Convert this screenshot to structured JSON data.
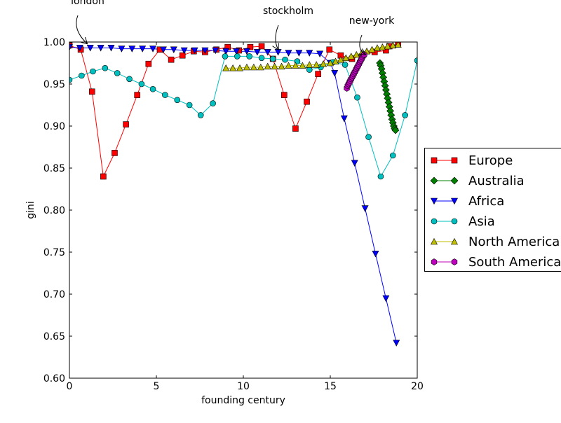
{
  "chart_data": {
    "type": "line",
    "title": "",
    "xlabel": "founding century",
    "ylabel": "gini",
    "xlim": [
      0,
      20
    ],
    "ylim": [
      0.6,
      1.0
    ],
    "x_ticks": [
      0,
      5,
      10,
      15,
      20
    ],
    "y_ticks": [
      0.6,
      0.65,
      0.7,
      0.75,
      0.8,
      0.85,
      0.9,
      0.95,
      1.0
    ],
    "grid": false,
    "legend_position": "right",
    "annotations": [
      {
        "text": "london",
        "x": 1.0,
        "y": 0.995
      },
      {
        "text": "stockholm",
        "x": 12.0,
        "y": 0.988
      },
      {
        "text": "new-york",
        "x": 17.0,
        "y": 0.982
      }
    ],
    "series": [
      {
        "name": "Europe",
        "color": "#ff0000",
        "marker": "square",
        "points": [
          [
            0.0,
            0.996
          ],
          [
            0.65,
            0.991
          ],
          [
            1.3,
            0.941
          ],
          [
            1.95,
            0.84
          ],
          [
            2.6,
            0.868
          ],
          [
            3.25,
            0.902
          ],
          [
            3.9,
            0.937
          ],
          [
            4.55,
            0.974
          ],
          [
            5.2,
            0.991
          ],
          [
            5.85,
            0.979
          ],
          [
            6.5,
            0.984
          ],
          [
            7.15,
            0.989
          ],
          [
            7.8,
            0.988
          ],
          [
            8.45,
            0.991
          ],
          [
            9.1,
            0.994
          ],
          [
            9.75,
            0.99
          ],
          [
            10.4,
            0.994
          ],
          [
            11.05,
            0.995
          ],
          [
            11.7,
            0.98
          ],
          [
            12.35,
            0.937
          ],
          [
            13.0,
            0.897
          ],
          [
            13.65,
            0.929
          ],
          [
            14.3,
            0.962
          ],
          [
            14.95,
            0.991
          ],
          [
            15.6,
            0.984
          ],
          [
            16.25,
            0.98
          ],
          [
            16.9,
            0.985
          ],
          [
            17.55,
            0.988
          ],
          [
            18.2,
            0.99
          ],
          [
            18.4,
            0.995
          ],
          [
            18.9,
            0.998
          ]
        ]
      },
      {
        "name": "Australia",
        "color": "#008000",
        "marker": "diamond",
        "points": [
          [
            17.85,
            0.975
          ],
          [
            17.9,
            0.972
          ],
          [
            17.95,
            0.968
          ],
          [
            18.0,
            0.963
          ],
          [
            18.05,
            0.958
          ],
          [
            18.1,
            0.953
          ],
          [
            18.15,
            0.948
          ],
          [
            18.2,
            0.943
          ],
          [
            18.25,
            0.938
          ],
          [
            18.3,
            0.933
          ],
          [
            18.35,
            0.928
          ],
          [
            18.4,
            0.923
          ],
          [
            18.45,
            0.918
          ],
          [
            18.5,
            0.913
          ],
          [
            18.55,
            0.908
          ],
          [
            18.6,
            0.904
          ],
          [
            18.65,
            0.9
          ],
          [
            18.7,
            0.897
          ],
          [
            18.75,
            0.895
          ]
        ]
      },
      {
        "name": "Africa",
        "color": "#0000ff",
        "marker": "triangle-down",
        "points": [
          [
            0.0,
            0.994
          ],
          [
            0.6,
            0.993
          ],
          [
            1.2,
            0.993
          ],
          [
            1.8,
            0.993
          ],
          [
            2.4,
            0.993
          ],
          [
            3.0,
            0.992
          ],
          [
            3.6,
            0.992
          ],
          [
            4.2,
            0.992
          ],
          [
            4.8,
            0.992
          ],
          [
            5.4,
            0.991
          ],
          [
            6.0,
            0.991
          ],
          [
            6.6,
            0.99
          ],
          [
            7.2,
            0.99
          ],
          [
            7.8,
            0.99
          ],
          [
            8.4,
            0.99
          ],
          [
            9.0,
            0.989
          ],
          [
            9.6,
            0.989
          ],
          [
            10.2,
            0.989
          ],
          [
            10.8,
            0.988
          ],
          [
            11.4,
            0.988
          ],
          [
            12.0,
            0.988
          ],
          [
            12.6,
            0.987
          ],
          [
            13.2,
            0.987
          ],
          [
            13.8,
            0.987
          ],
          [
            14.4,
            0.986
          ],
          [
            15.0,
            0.975
          ],
          [
            15.25,
            0.963
          ],
          [
            15.8,
            0.909
          ],
          [
            16.4,
            0.856
          ],
          [
            17.0,
            0.802
          ],
          [
            17.6,
            0.748
          ],
          [
            18.2,
            0.695
          ],
          [
            18.8,
            0.642
          ]
        ]
      },
      {
        "name": "Asia",
        "color": "#00bfbf",
        "marker": "circle",
        "points": [
          [
            0.0,
            0.955
          ],
          [
            0.7,
            0.96
          ],
          [
            1.35,
            0.965
          ],
          [
            2.05,
            0.969
          ],
          [
            2.75,
            0.963
          ],
          [
            3.45,
            0.956
          ],
          [
            4.15,
            0.95
          ],
          [
            4.8,
            0.944
          ],
          [
            5.5,
            0.937
          ],
          [
            6.2,
            0.931
          ],
          [
            6.9,
            0.925
          ],
          [
            7.55,
            0.913
          ],
          [
            8.25,
            0.927
          ],
          [
            8.95,
            0.983
          ],
          [
            9.65,
            0.983
          ],
          [
            10.35,
            0.983
          ],
          [
            11.05,
            0.981
          ],
          [
            11.7,
            0.98
          ],
          [
            12.4,
            0.979
          ],
          [
            13.1,
            0.977
          ],
          [
            13.8,
            0.967
          ],
          [
            14.45,
            0.97
          ],
          [
            15.15,
            0.976
          ],
          [
            15.85,
            0.973
          ],
          [
            16.55,
            0.934
          ],
          [
            17.2,
            0.887
          ],
          [
            17.9,
            0.84
          ],
          [
            18.6,
            0.865
          ],
          [
            19.3,
            0.913
          ],
          [
            20.0,
            0.978
          ]
        ]
      },
      {
        "name": "North America",
        "color": "#bfbf00",
        "marker": "triangle-up",
        "points": [
          [
            9.0,
            0.969
          ],
          [
            9.4,
            0.969
          ],
          [
            9.8,
            0.969
          ],
          [
            10.2,
            0.97
          ],
          [
            10.6,
            0.97
          ],
          [
            11.0,
            0.97
          ],
          [
            11.4,
            0.971
          ],
          [
            11.8,
            0.971
          ],
          [
            12.2,
            0.971
          ],
          [
            12.6,
            0.972
          ],
          [
            13.0,
            0.972
          ],
          [
            13.4,
            0.972
          ],
          [
            13.8,
            0.973
          ],
          [
            14.2,
            0.973
          ],
          [
            14.6,
            0.974
          ],
          [
            15.0,
            0.975
          ],
          [
            15.3,
            0.977
          ],
          [
            15.6,
            0.979
          ],
          [
            15.9,
            0.981
          ],
          [
            16.2,
            0.983
          ],
          [
            16.5,
            0.985
          ],
          [
            16.8,
            0.987
          ],
          [
            17.1,
            0.989
          ],
          [
            17.4,
            0.991
          ],
          [
            17.7,
            0.993
          ],
          [
            18.0,
            0.994
          ],
          [
            18.3,
            0.995
          ],
          [
            18.6,
            0.996
          ],
          [
            18.9,
            0.997
          ]
        ]
      },
      {
        "name": "South America",
        "color": "#bf00bf",
        "marker": "hexagon",
        "points": [
          [
            15.95,
            0.945
          ],
          [
            16.0,
            0.948
          ],
          [
            16.05,
            0.95
          ],
          [
            16.1,
            0.952
          ],
          [
            16.15,
            0.954
          ],
          [
            16.2,
            0.956
          ],
          [
            16.25,
            0.958
          ],
          [
            16.3,
            0.96
          ],
          [
            16.35,
            0.962
          ],
          [
            16.4,
            0.964
          ],
          [
            16.45,
            0.966
          ],
          [
            16.5,
            0.968
          ],
          [
            16.55,
            0.97
          ],
          [
            16.6,
            0.972
          ],
          [
            16.65,
            0.974
          ],
          [
            16.7,
            0.976
          ],
          [
            16.75,
            0.978
          ],
          [
            16.8,
            0.98
          ],
          [
            16.85,
            0.982
          ],
          [
            16.9,
            0.984
          ],
          [
            16.95,
            0.985
          ]
        ]
      }
    ]
  }
}
